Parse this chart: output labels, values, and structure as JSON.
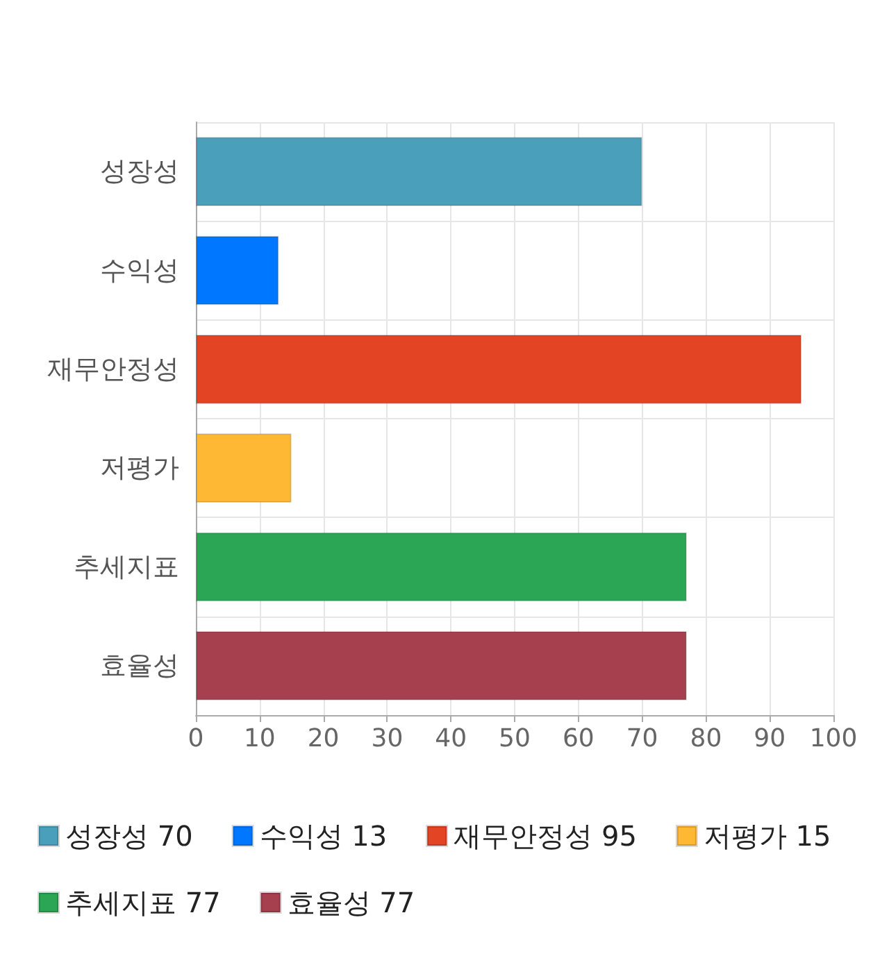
{
  "chart_data": {
    "type": "bar",
    "orientation": "horizontal",
    "stacked": true,
    "categories": [
      "성장성",
      "수익성",
      "재무안정성",
      "저평가",
      "추세지표",
      "효율성"
    ],
    "series": [
      {
        "name": "성장성 70",
        "color": "#4aa0bb",
        "values": [
          70,
          null,
          null,
          null,
          null,
          null
        ]
      },
      {
        "name": "수익성 13",
        "color": "#0077ff",
        "values": [
          null,
          13,
          null,
          null,
          null,
          null
        ]
      },
      {
        "name": "재무안정성 95",
        "color": "#e24424",
        "values": [
          null,
          null,
          95,
          null,
          null,
          null
        ]
      },
      {
        "name": "저평가 15",
        "color": "#ffb833",
        "values": [
          null,
          null,
          null,
          15,
          null,
          null
        ]
      },
      {
        "name": "추세지표 77",
        "color": "#2aa655",
        "values": [
          null,
          null,
          null,
          null,
          77,
          null
        ]
      },
      {
        "name": "효율성 77",
        "color": "#a6404f",
        "values": [
          null,
          null,
          null,
          null,
          null,
          77
        ]
      }
    ],
    "xlim": [
      0,
      100
    ],
    "xticks": [
      0,
      10,
      20,
      30,
      40,
      50,
      60,
      70,
      80,
      90,
      100
    ],
    "grid": true,
    "legend": "bottom"
  }
}
